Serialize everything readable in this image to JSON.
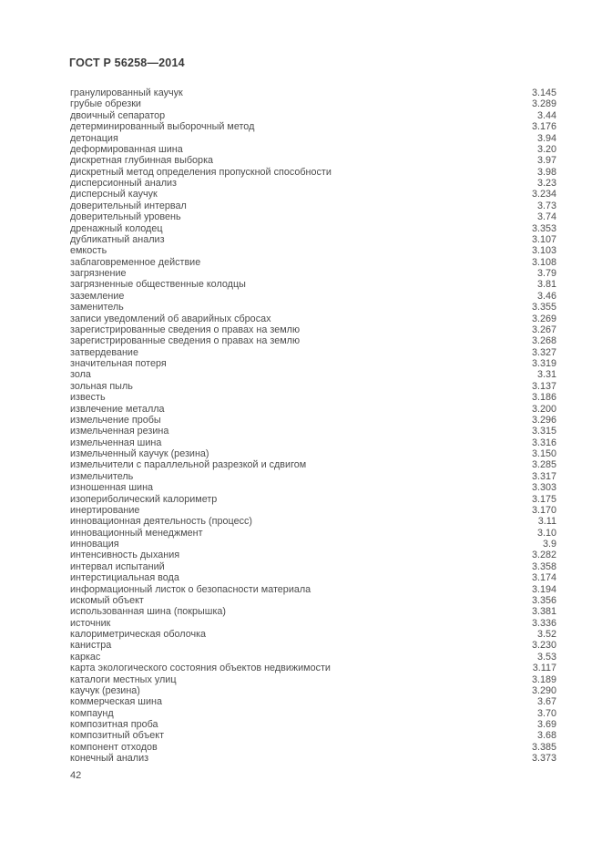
{
  "page": {
    "header": "ГОСТ Р 56258—2014",
    "page_number": "42"
  },
  "index_entries": [
    {
      "term": "гранулированный каучук",
      "ref": "3.145"
    },
    {
      "term": "грубые обрезки",
      "ref": "3.289"
    },
    {
      "term": "двоичный сепаратор",
      "ref": "3.44"
    },
    {
      "term": "детерминированный выборочный метод",
      "ref": "3.176"
    },
    {
      "term": "детонация",
      "ref": "3.94"
    },
    {
      "term": "деформированная шина",
      "ref": "3.20"
    },
    {
      "term": "дискретная глубинная выборка",
      "ref": "3.97"
    },
    {
      "term": "дискретный метод определения пропускной способности",
      "ref": "3.98"
    },
    {
      "term": "дисперсионный анализ",
      "ref": "3.23"
    },
    {
      "term": "дисперсный каучук",
      "ref": "3.234"
    },
    {
      "term": "доверительный интервал",
      "ref": "3.73"
    },
    {
      "term": "доверительный уровень",
      "ref": "3.74"
    },
    {
      "term": "дренажный колодец",
      "ref": "3.353"
    },
    {
      "term": "дубликатный анализ",
      "ref": "3.107"
    },
    {
      "term": "емкость",
      "ref": "3.103"
    },
    {
      "term": "заблаговременное действие",
      "ref": "3.108"
    },
    {
      "term": "загрязнение",
      "ref": "3.79"
    },
    {
      "term": "загрязненные общественные колодцы",
      "ref": "3.81"
    },
    {
      "term": "заземление",
      "ref": "3.46"
    },
    {
      "term": "заменитель",
      "ref": "3.355"
    },
    {
      "term": "записи уведомлений об аварийных сбросах",
      "ref": "3.269"
    },
    {
      "term": "зарегистрированные сведения о правах на землю",
      "ref": "3.267"
    },
    {
      "term": "зарегистрированные сведения о правах на землю",
      "ref": "3.268"
    },
    {
      "term": "затвердевание",
      "ref": "3.327"
    },
    {
      "term": "значительная потеря",
      "ref": "3.319"
    },
    {
      "term": "зола",
      "ref": "3.31"
    },
    {
      "term": "зольная пыль",
      "ref": "3.137"
    },
    {
      "term": "известь",
      "ref": "3.186"
    },
    {
      "term": "извлечение металла",
      "ref": "3.200"
    },
    {
      "term": "измельчение пробы",
      "ref": "3.296"
    },
    {
      "term": "измельченная резина",
      "ref": "3.315"
    },
    {
      "term": "измельченная шина",
      "ref": "3.316"
    },
    {
      "term": "измельченный каучук (резина)",
      "ref": "3.150"
    },
    {
      "term": "измельчители с параллельной разрезкой и сдвигом",
      "ref": "3.285"
    },
    {
      "term": "измельчитель",
      "ref": "3.317"
    },
    {
      "term": "изношенная шина",
      "ref": "3.303"
    },
    {
      "term": "изопериболический калориметр",
      "ref": "3.175"
    },
    {
      "term": "инертирование",
      "ref": "3.170"
    },
    {
      "term": "инновационная деятельность (процесс)",
      "ref": "3.11"
    },
    {
      "term": "инновационный менеджмент",
      "ref": "3.10"
    },
    {
      "term": "инновация",
      "ref": "3.9"
    },
    {
      "term": "интенсивность дыхания",
      "ref": "3.282"
    },
    {
      "term": "интервал испытаний",
      "ref": "3.358"
    },
    {
      "term": "интерстициальная вода",
      "ref": "3.174"
    },
    {
      "term": "информационный листок о безопасности материала",
      "ref": "3.194"
    },
    {
      "term": "искомый объект",
      "ref": "3.356"
    },
    {
      "term": "использованная шина (покрышка)",
      "ref": "3.381"
    },
    {
      "term": "источник",
      "ref": "3.336"
    },
    {
      "term": "калориметрическая оболочка",
      "ref": "3.52"
    },
    {
      "term": "канистра",
      "ref": "3.230"
    },
    {
      "term": "каркас",
      "ref": "3.53"
    },
    {
      "term": "карта экологического состояния объектов недвижимости",
      "ref": "3.117"
    },
    {
      "term": "каталоги местных улиц",
      "ref": "3.189"
    },
    {
      "term": "каучук (резина)",
      "ref": "3.290"
    },
    {
      "term": "коммерческая шина",
      "ref": "3.67"
    },
    {
      "term": "компаунд",
      "ref": "3.70"
    },
    {
      "term": "композитная проба",
      "ref": "3.69"
    },
    {
      "term": "композитный объект",
      "ref": "3.68"
    },
    {
      "term": "компонент отходов",
      "ref": "3.385"
    },
    {
      "term": "конечный анализ",
      "ref": "3.373"
    }
  ]
}
